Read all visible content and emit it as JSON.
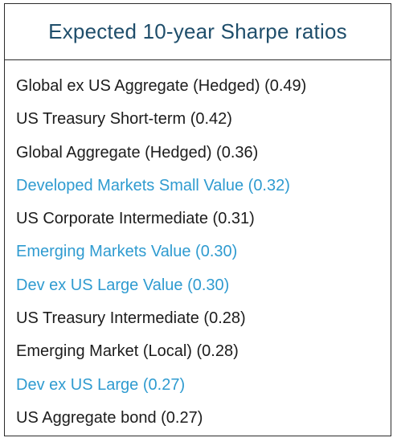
{
  "title": "Expected 10-year Sharpe ratios",
  "colors": {
    "title": "#1f4e6b",
    "text": "#1c1c1c",
    "highlight": "#2f9bd0",
    "border": "#2b2b2b"
  },
  "items": [
    {
      "label": "Global ex US Aggregate (Hedged) (0.49)",
      "highlight": false
    },
    {
      "label": "US Treasury Short-term (0.42)",
      "highlight": false
    },
    {
      "label": "Global Aggregate (Hedged) (0.36)",
      "highlight": false
    },
    {
      "label": "Developed Markets Small Value (0.32)",
      "highlight": true
    },
    {
      "label": "US Corporate Intermediate (0.31)",
      "highlight": false
    },
    {
      "label": "Emerging Markets Value (0.30)",
      "highlight": true
    },
    {
      "label": "Dev ex US Large Value (0.30)",
      "highlight": true
    },
    {
      "label": "US Treasury Intermediate (0.28)",
      "highlight": false
    },
    {
      "label": "Emerging Market (Local) (0.28)",
      "highlight": false
    },
    {
      "label": "Dev ex US Large (0.27)",
      "highlight": true
    },
    {
      "label": "US Aggregate bond (0.27)",
      "highlight": false
    }
  ]
}
